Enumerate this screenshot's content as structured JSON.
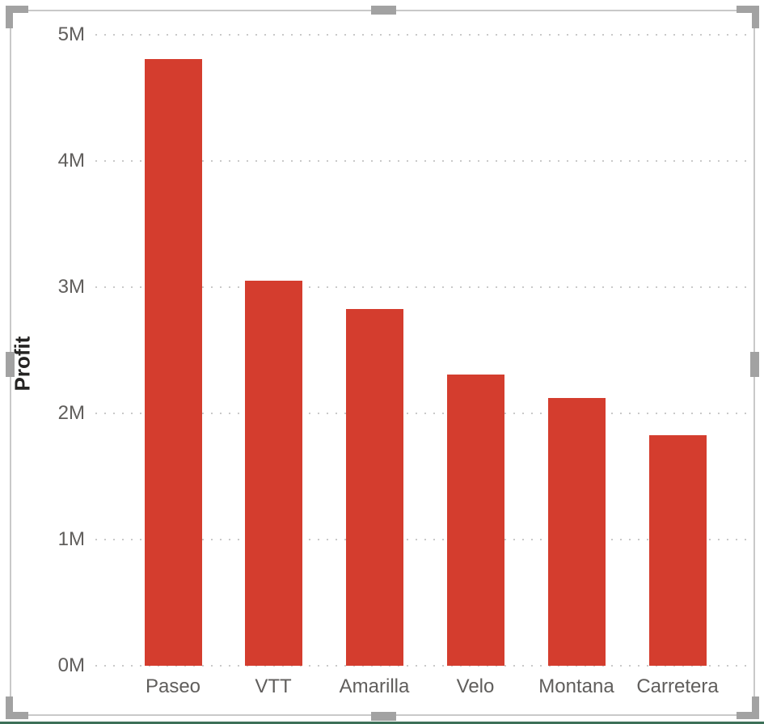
{
  "visual": {
    "kind": "column-chart-visual",
    "state": "selected",
    "colors": {
      "bar": "#D43D2E",
      "gridline": "#C9C9C9",
      "frame_border": "#C9C9C9",
      "handle": "#A2A2A2",
      "tick_text": "#605E5C",
      "axis_title_text": "#252423",
      "bottom_edge_line": "#3D7058"
    }
  },
  "chart_data": {
    "type": "bar",
    "title": "",
    "xlabel": "",
    "ylabel": "Profit",
    "categories": [
      "Paseo",
      "VTT",
      "Amarilla",
      "Velo",
      "Montana",
      "Carretera"
    ],
    "values": [
      4810000,
      3050000,
      2830000,
      2310000,
      2120000,
      1830000
    ],
    "y_ticks": [
      "0M",
      "1M",
      "2M",
      "3M",
      "4M",
      "5M"
    ],
    "y_tick_values": [
      0,
      1000000,
      2000000,
      3000000,
      4000000,
      5000000
    ],
    "ylim": [
      0,
      5000000
    ],
    "grid": "dotted-horizontal",
    "legend": "none",
    "bar_color": "#D43D2E"
  }
}
